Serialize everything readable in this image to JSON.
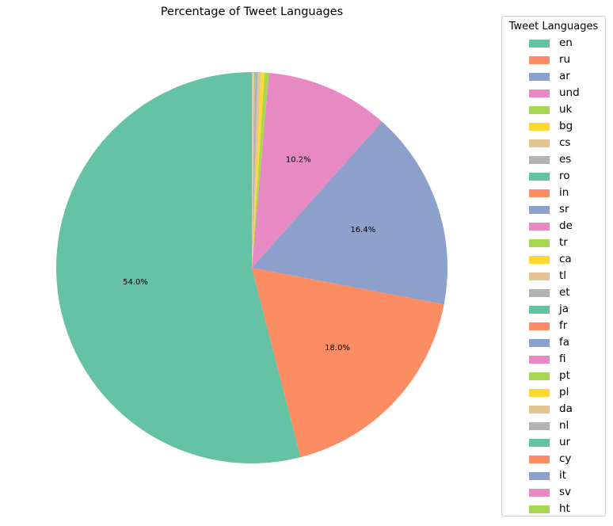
{
  "chart_data": {
    "type": "pie",
    "title": "Percentage of Tweet Languages",
    "legend_title": "Tweet Languages",
    "legend_position": "right",
    "start_angle_deg": 90,
    "direction": "counterclockwise",
    "palette": [
      "#66c2a5",
      "#fc8d62",
      "#8da0cb",
      "#e78ac3",
      "#a6d854",
      "#ffd92f",
      "#e5c494",
      "#b3b3b3"
    ],
    "slices": [
      {
        "label": "en",
        "value": 54.0,
        "pct_label": "54.0%"
      },
      {
        "label": "ru",
        "value": 18.0,
        "pct_label": "18.0%"
      },
      {
        "label": "ar",
        "value": 16.4,
        "pct_label": "16.4%"
      },
      {
        "label": "und",
        "value": 10.2,
        "pct_label": "10.2%"
      },
      {
        "label": "uk",
        "value": 0.35,
        "pct_label": ""
      },
      {
        "label": "bg",
        "value": 0.3,
        "pct_label": ""
      },
      {
        "label": "cs",
        "value": 0.25,
        "pct_label": ""
      },
      {
        "label": "es",
        "value": 0.2,
        "pct_label": ""
      },
      {
        "label": "ro",
        "value": 0.03,
        "pct_label": ""
      },
      {
        "label": "in",
        "value": 0.03,
        "pct_label": ""
      },
      {
        "label": "sr",
        "value": 0.02,
        "pct_label": ""
      },
      {
        "label": "de",
        "value": 0.02,
        "pct_label": ""
      },
      {
        "label": "tr",
        "value": 0.02,
        "pct_label": ""
      },
      {
        "label": "ca",
        "value": 0.02,
        "pct_label": ""
      },
      {
        "label": "tl",
        "value": 0.01,
        "pct_label": ""
      },
      {
        "label": "et",
        "value": 0.01,
        "pct_label": ""
      },
      {
        "label": "ja",
        "value": 0.01,
        "pct_label": ""
      },
      {
        "label": "fr",
        "value": 0.01,
        "pct_label": ""
      },
      {
        "label": "fa",
        "value": 0.01,
        "pct_label": ""
      },
      {
        "label": "fi",
        "value": 0.01,
        "pct_label": ""
      },
      {
        "label": "pt",
        "value": 0.01,
        "pct_label": ""
      },
      {
        "label": "pl",
        "value": 0.01,
        "pct_label": ""
      },
      {
        "label": "da",
        "value": 0.01,
        "pct_label": ""
      },
      {
        "label": "nl",
        "value": 0.01,
        "pct_label": ""
      },
      {
        "label": "ur",
        "value": 0.01,
        "pct_label": ""
      },
      {
        "label": "cy",
        "value": 0.01,
        "pct_label": ""
      },
      {
        "label": "it",
        "value": 0.01,
        "pct_label": ""
      },
      {
        "label": "sv",
        "value": 0.01,
        "pct_label": ""
      },
      {
        "label": "ht",
        "value": 0.01,
        "pct_label": ""
      }
    ]
  }
}
